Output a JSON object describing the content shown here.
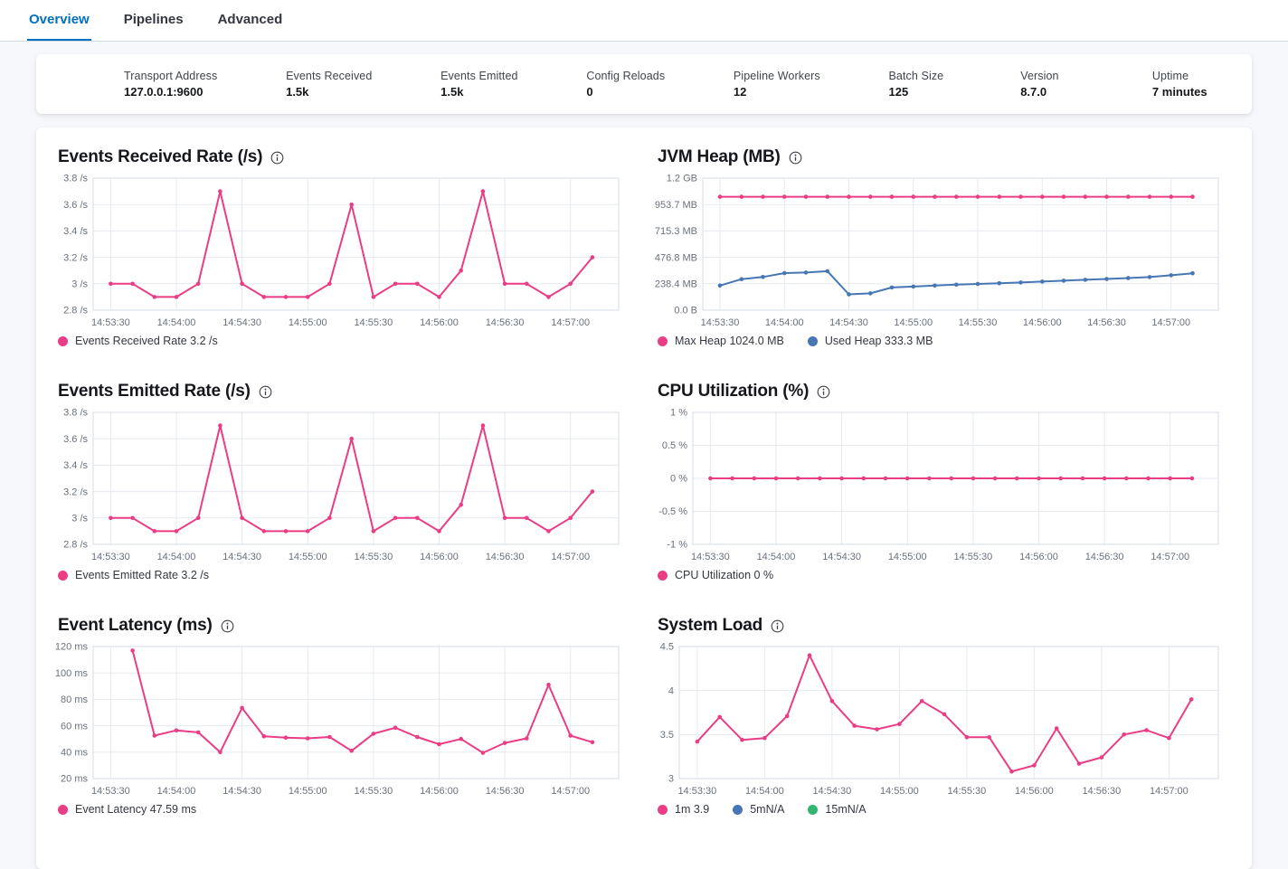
{
  "tabs": [
    {
      "label": "Overview",
      "active": true
    },
    {
      "label": "Pipelines",
      "active": false
    },
    {
      "label": "Advanced",
      "active": false
    }
  ],
  "stats": [
    {
      "label": "Transport Address",
      "value": "127.0.0.1:9600"
    },
    {
      "label": "Events Received",
      "value": "1.5k"
    },
    {
      "label": "Events Emitted",
      "value": "1.5k"
    },
    {
      "label": "Config Reloads",
      "value": "0"
    },
    {
      "label": "Pipeline Workers",
      "value": "12"
    },
    {
      "label": "Batch Size",
      "value": "125"
    },
    {
      "label": "Version",
      "value": "8.7.0"
    },
    {
      "label": "Uptime",
      "value": "7 minutes"
    }
  ],
  "colors": {
    "pink": "#ea3d85",
    "blue": "#4676b4",
    "green": "#31b56f",
    "accent": "#0071c2",
    "grid": "#e6eaf0",
    "plot_border": "#d6dbe4",
    "tick_text": "#69707d"
  },
  "chart_data": [
    {
      "id": "events-received-rate",
      "type": "line",
      "title": "Events Received Rate (/s)",
      "x_domain": [
        -8,
        232
      ],
      "x_ticks": [
        {
          "v": 0,
          "label": "14:53:30"
        },
        {
          "v": 30,
          "label": "14:54:00"
        },
        {
          "v": 60,
          "label": "14:54:30"
        },
        {
          "v": 90,
          "label": "14:55:00"
        },
        {
          "v": 120,
          "label": "14:55:30"
        },
        {
          "v": 150,
          "label": "14:56:00"
        },
        {
          "v": 180,
          "label": "14:56:30"
        },
        {
          "v": 210,
          "label": "14:57:00"
        }
      ],
      "y_domain": [
        2.8,
        3.8
      ],
      "y_ticks": [
        {
          "v": 2.8,
          "label": "2.8 /s"
        },
        {
          "v": 3,
          "label": "3 /s"
        },
        {
          "v": 3.2,
          "label": "3.2 /s"
        },
        {
          "v": 3.4,
          "label": "3.4 /s"
        },
        {
          "v": 3.6,
          "label": "3.6 /s"
        },
        {
          "v": 3.8,
          "label": "3.8 /s"
        }
      ],
      "series": [
        {
          "name": "Events Received Rate",
          "color": "pink",
          "x0": 0,
          "step": 10,
          "values": [
            3,
            3,
            2.9,
            2.9,
            3,
            3.7,
            3,
            2.9,
            2.9,
            2.9,
            3,
            3.6,
            2.9,
            3,
            3,
            2.9,
            3.1,
            3.7,
            3,
            3,
            2.9,
            3,
            3.2
          ]
        }
      ],
      "legend": [
        {
          "label": "Events Received Rate 3.2 /s",
          "color": "pink"
        }
      ]
    },
    {
      "id": "jvm-heap",
      "type": "line",
      "title": "JVM Heap (MB)",
      "x_domain": [
        -8,
        232
      ],
      "x_ticks": [
        {
          "v": 0,
          "label": "14:53:30"
        },
        {
          "v": 30,
          "label": "14:54:00"
        },
        {
          "v": 60,
          "label": "14:54:30"
        },
        {
          "v": 90,
          "label": "14:55:00"
        },
        {
          "v": 120,
          "label": "14:55:30"
        },
        {
          "v": 150,
          "label": "14:56:00"
        },
        {
          "v": 180,
          "label": "14:56:30"
        },
        {
          "v": 210,
          "label": "14:57:00"
        }
      ],
      "y_domain": [
        0,
        1192.1
      ],
      "y_ticks": [
        {
          "v": 0,
          "label": "0.0 B"
        },
        {
          "v": 238.4,
          "label": "238.4 MB"
        },
        {
          "v": 476.8,
          "label": "476.8 MB"
        },
        {
          "v": 715.3,
          "label": "715.3 MB"
        },
        {
          "v": 953.7,
          "label": "953.7 MB"
        },
        {
          "v": 1192.1,
          "label": "1.2 GB"
        }
      ],
      "series": [
        {
          "name": "Max Heap",
          "color": "pink",
          "x0": 0,
          "step": 10,
          "values": [
            1024,
            1024,
            1024,
            1024,
            1024,
            1024,
            1024,
            1024,
            1024,
            1024,
            1024,
            1024,
            1024,
            1024,
            1024,
            1024,
            1024,
            1024,
            1024,
            1024,
            1024,
            1024,
            1024
          ]
        },
        {
          "name": "Used Heap",
          "color": "blue",
          "x0": 0,
          "step": 10,
          "values": [
            222,
            280,
            300,
            335,
            340,
            352,
            143,
            152,
            205,
            213,
            222,
            230,
            237,
            243,
            250,
            258,
            266,
            274,
            282,
            290,
            299,
            315,
            333
          ]
        }
      ],
      "legend": [
        {
          "label": "Max Heap 1024.0 MB",
          "color": "pink"
        },
        {
          "label": "Used Heap 333.3 MB",
          "color": "blue"
        }
      ]
    },
    {
      "id": "events-emitted-rate",
      "type": "line",
      "title": "Events Emitted Rate (/s)",
      "x_domain": [
        -8,
        232
      ],
      "x_ticks": [
        {
          "v": 0,
          "label": "14:53:30"
        },
        {
          "v": 30,
          "label": "14:54:00"
        },
        {
          "v": 60,
          "label": "14:54:30"
        },
        {
          "v": 90,
          "label": "14:55:00"
        },
        {
          "v": 120,
          "label": "14:55:30"
        },
        {
          "v": 150,
          "label": "14:56:00"
        },
        {
          "v": 180,
          "label": "14:56:30"
        },
        {
          "v": 210,
          "label": "14:57:00"
        }
      ],
      "y_domain": [
        2.8,
        3.8
      ],
      "y_ticks": [
        {
          "v": 2.8,
          "label": "2.8 /s"
        },
        {
          "v": 3,
          "label": "3 /s"
        },
        {
          "v": 3.2,
          "label": "3.2 /s"
        },
        {
          "v": 3.4,
          "label": "3.4 /s"
        },
        {
          "v": 3.6,
          "label": "3.6 /s"
        },
        {
          "v": 3.8,
          "label": "3.8 /s"
        }
      ],
      "series": [
        {
          "name": "Events Emitted Rate",
          "color": "pink",
          "x0": 0,
          "step": 10,
          "values": [
            3,
            3,
            2.9,
            2.9,
            3,
            3.7,
            3,
            2.9,
            2.9,
            2.9,
            3,
            3.6,
            2.9,
            3,
            3,
            2.9,
            3.1,
            3.7,
            3,
            3,
            2.9,
            3,
            3.2
          ]
        }
      ],
      "legend": [
        {
          "label": "Events Emitted Rate 3.2 /s",
          "color": "pink"
        }
      ]
    },
    {
      "id": "cpu-utilization",
      "type": "line",
      "title": "CPU Utilization (%)",
      "x_domain": [
        -8,
        232
      ],
      "x_ticks": [
        {
          "v": 0,
          "label": "14:53:30"
        },
        {
          "v": 30,
          "label": "14:54:00"
        },
        {
          "v": 60,
          "label": "14:54:30"
        },
        {
          "v": 90,
          "label": "14:55:00"
        },
        {
          "v": 120,
          "label": "14:55:30"
        },
        {
          "v": 150,
          "label": "14:56:00"
        },
        {
          "v": 180,
          "label": "14:56:30"
        },
        {
          "v": 210,
          "label": "14:57:00"
        }
      ],
      "y_domain": [
        -1,
        1
      ],
      "y_ticks": [
        {
          "v": -1,
          "label": "-1 %"
        },
        {
          "v": -0.5,
          "label": "-0.5 %"
        },
        {
          "v": 0,
          "label": "0 %"
        },
        {
          "v": 0.5,
          "label": "0.5 %"
        },
        {
          "v": 1,
          "label": "1 %"
        }
      ],
      "series": [
        {
          "name": "CPU Utilization",
          "color": "pink",
          "x0": 0,
          "step": 10,
          "values": [
            0,
            0,
            0,
            0,
            0,
            0,
            0,
            0,
            0,
            0,
            0,
            0,
            0,
            0,
            0,
            0,
            0,
            0,
            0,
            0,
            0,
            0,
            0
          ]
        }
      ],
      "legend": [
        {
          "label": "CPU Utilization 0 %",
          "color": "pink"
        }
      ]
    },
    {
      "id": "event-latency",
      "type": "line",
      "title": "Event Latency (ms)",
      "x_domain": [
        -8,
        232
      ],
      "x_ticks": [
        {
          "v": 0,
          "label": "14:53:30"
        },
        {
          "v": 30,
          "label": "14:54:00"
        },
        {
          "v": 60,
          "label": "14:54:30"
        },
        {
          "v": 90,
          "label": "14:55:00"
        },
        {
          "v": 120,
          "label": "14:55:30"
        },
        {
          "v": 150,
          "label": "14:56:00"
        },
        {
          "v": 180,
          "label": "14:56:30"
        },
        {
          "v": 210,
          "label": "14:57:00"
        }
      ],
      "y_domain": [
        20,
        120
      ],
      "y_ticks": [
        {
          "v": 20,
          "label": "20 ms"
        },
        {
          "v": 40,
          "label": "40 ms"
        },
        {
          "v": 60,
          "label": "60 ms"
        },
        {
          "v": 80,
          "label": "80 ms"
        },
        {
          "v": 100,
          "label": "100 ms"
        },
        {
          "v": 120,
          "label": "120 ms"
        }
      ],
      "series": [
        {
          "name": "Event Latency",
          "color": "pink",
          "x0": 10,
          "step": 10,
          "values": [
            117,
            52.5,
            56.5,
            55,
            40,
            73.5,
            52,
            51,
            50.5,
            51.5,
            41,
            54,
            58.5,
            51.5,
            46,
            50,
            39.5,
            47,
            50.5,
            91,
            52.5,
            47.5
          ]
        }
      ],
      "legend": [
        {
          "label": "Event Latency 47.59 ms",
          "color": "pink"
        }
      ]
    },
    {
      "id": "system-load",
      "type": "line",
      "title": "System Load",
      "x_domain": [
        -8,
        232
      ],
      "x_ticks": [
        {
          "v": 0,
          "label": "14:53:30"
        },
        {
          "v": 30,
          "label": "14:54:00"
        },
        {
          "v": 60,
          "label": "14:54:30"
        },
        {
          "v": 90,
          "label": "14:55:00"
        },
        {
          "v": 120,
          "label": "14:55:30"
        },
        {
          "v": 150,
          "label": "14:56:00"
        },
        {
          "v": 180,
          "label": "14:56:30"
        },
        {
          "v": 210,
          "label": "14:57:00"
        }
      ],
      "y_domain": [
        3,
        4.5
      ],
      "y_ticks": [
        {
          "v": 3,
          "label": "3"
        },
        {
          "v": 3.5,
          "label": "3.5"
        },
        {
          "v": 4,
          "label": "4"
        },
        {
          "v": 4.5,
          "label": "4.5"
        }
      ],
      "series": [
        {
          "name": "1m",
          "color": "pink",
          "x0": 0,
          "step": 10,
          "values": [
            3.42,
            3.7,
            3.44,
            3.46,
            3.71,
            4.4,
            3.88,
            3.6,
            3.56,
            3.62,
            3.88,
            3.73,
            3.47,
            3.47,
            3.08,
            3.15,
            3.57,
            3.17,
            3.24,
            3.5,
            3.55,
            3.46,
            3.9
          ]
        }
      ],
      "legend": [
        {
          "label": "1m 3.9",
          "color": "pink"
        },
        {
          "label": "5mN/A",
          "color": "blue"
        },
        {
          "label": "15mN/A",
          "color": "green"
        }
      ]
    }
  ]
}
